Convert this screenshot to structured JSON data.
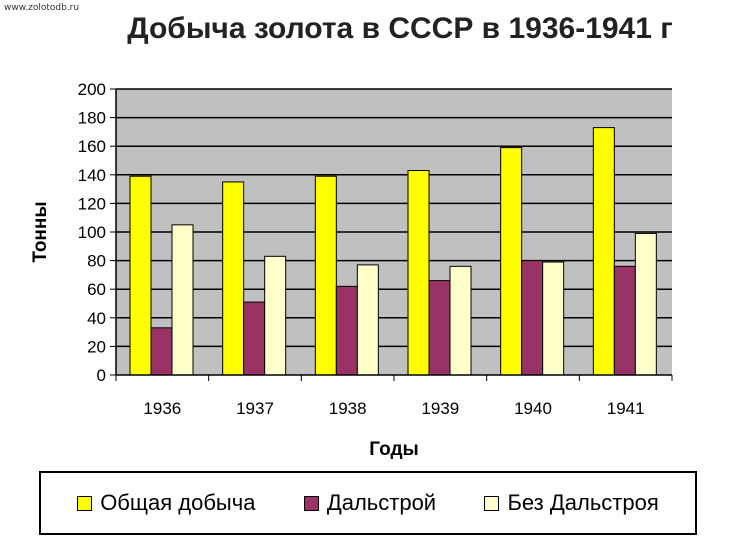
{
  "watermark": "www.zolotodb.ru",
  "chart_data": {
    "type": "bar",
    "title": "Добыча золота в СССР в 1936-1941 г",
    "xlabel": "Годы",
    "ylabel": "Тонны",
    "categories": [
      "1936",
      "1937",
      "1938",
      "1939",
      "1940",
      "1941"
    ],
    "ylim": [
      0,
      200
    ],
    "yticks": [
      0,
      20,
      40,
      60,
      80,
      100,
      120,
      140,
      160,
      180,
      200
    ],
    "grid": true,
    "legend_position": "bottom",
    "series": [
      {
        "name": "Общая добыча",
        "color": "#ffff00",
        "values": [
          139,
          135,
          139,
          143,
          159,
          173
        ]
      },
      {
        "name": "Дальстрой",
        "color": "#993366",
        "values": [
          33,
          51,
          62,
          66,
          80,
          76
        ]
      },
      {
        "name": "Без Дальстроя",
        "color": "#ffffcc",
        "values": [
          105,
          83,
          77,
          76,
          79,
          99
        ]
      }
    ]
  }
}
